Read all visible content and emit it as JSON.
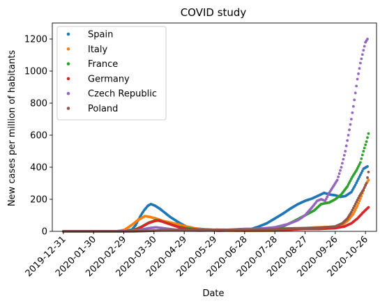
{
  "chart_data": {
    "type": "scatter",
    "title": "COVID study",
    "xlabel": "Date",
    "ylabel": "New cases per million of habitants",
    "x_ticks": [
      "2019-12-31",
      "2020-01-30",
      "2020-02-29",
      "2020-03-30",
      "2020-04-29",
      "2020-05-29",
      "2020-06-28",
      "2020-07-28",
      "2020-08-27",
      "2020-09-26",
      "2020-10-26"
    ],
    "y_ticks": [
      0,
      200,
      400,
      600,
      800,
      1000,
      1200
    ],
    "xlim": [
      "2019-12-20",
      "2020-11-06"
    ],
    "ylim": [
      0,
      1300
    ],
    "legend_position": "upper-left",
    "series": [
      {
        "name": "Spain",
        "color": "#1f77b4",
        "points": [
          [
            "2019-12-31",
            0
          ],
          [
            "2020-02-20",
            0
          ],
          [
            "2020-03-01",
            2
          ],
          [
            "2020-03-08",
            10
          ],
          [
            "2020-03-12",
            40
          ],
          [
            "2020-03-16",
            90
          ],
          [
            "2020-03-20",
            130
          ],
          [
            "2020-03-24",
            160
          ],
          [
            "2020-03-27",
            170
          ],
          [
            "2020-03-31",
            160
          ],
          [
            "2020-04-05",
            140
          ],
          [
            "2020-04-10",
            115
          ],
          [
            "2020-04-15",
            90
          ],
          [
            "2020-04-20",
            70
          ],
          [
            "2020-04-25",
            50
          ],
          [
            "2020-05-01",
            30
          ],
          [
            "2020-05-10",
            18
          ],
          [
            "2020-05-20",
            12
          ],
          [
            "2020-06-01",
            8
          ],
          [
            "2020-06-15",
            6
          ],
          [
            "2020-06-28",
            8
          ],
          [
            "2020-07-05",
            15
          ],
          [
            "2020-07-12",
            30
          ],
          [
            "2020-07-20",
            50
          ],
          [
            "2020-07-28",
            80
          ],
          [
            "2020-08-05",
            110
          ],
          [
            "2020-08-12",
            140
          ],
          [
            "2020-08-20",
            170
          ],
          [
            "2020-08-27",
            190
          ],
          [
            "2020-09-03",
            205
          ],
          [
            "2020-09-10",
            225
          ],
          [
            "2020-09-15",
            240
          ],
          [
            "2020-09-20",
            230
          ],
          [
            "2020-09-26",
            225
          ],
          [
            "2020-10-01",
            215
          ],
          [
            "2020-10-06",
            220
          ],
          [
            "2020-10-12",
            245
          ],
          [
            "2020-10-16",
            290
          ],
          [
            "2020-10-20",
            340
          ],
          [
            "2020-10-24",
            390
          ],
          [
            "2020-10-28",
            405
          ]
        ]
      },
      {
        "name": "Italy",
        "color": "#ff7f0e",
        "points": [
          [
            "2019-12-31",
            0
          ],
          [
            "2020-02-20",
            0
          ],
          [
            "2020-02-25",
            3
          ],
          [
            "2020-03-01",
            10
          ],
          [
            "2020-03-08",
            40
          ],
          [
            "2020-03-14",
            70
          ],
          [
            "2020-03-21",
            95
          ],
          [
            "2020-03-26",
            90
          ],
          [
            "2020-04-01",
            80
          ],
          [
            "2020-04-08",
            65
          ],
          [
            "2020-04-15",
            55
          ],
          [
            "2020-04-22",
            45
          ],
          [
            "2020-05-01",
            30
          ],
          [
            "2020-05-10",
            18
          ],
          [
            "2020-05-20",
            10
          ],
          [
            "2020-06-01",
            6
          ],
          [
            "2020-06-28",
            4
          ],
          [
            "2020-07-28",
            5
          ],
          [
            "2020-08-10",
            8
          ],
          [
            "2020-08-27",
            20
          ],
          [
            "2020-09-10",
            25
          ],
          [
            "2020-09-26",
            28
          ],
          [
            "2020-10-03",
            40
          ],
          [
            "2020-10-09",
            70
          ],
          [
            "2020-10-14",
            110
          ],
          [
            "2020-10-18",
            160
          ],
          [
            "2020-10-22",
            220
          ],
          [
            "2020-10-26",
            290
          ],
          [
            "2020-10-29",
            320
          ]
        ]
      },
      {
        "name": "France",
        "color": "#2ca02c",
        "points": [
          [
            "2019-12-31",
            0
          ],
          [
            "2020-03-01",
            0
          ],
          [
            "2020-03-10",
            8
          ],
          [
            "2020-03-18",
            30
          ],
          [
            "2020-03-25",
            55
          ],
          [
            "2020-04-01",
            70
          ],
          [
            "2020-04-08",
            60
          ],
          [
            "2020-04-15",
            45
          ],
          [
            "2020-04-22",
            30
          ],
          [
            "2020-05-01",
            20
          ],
          [
            "2020-05-15",
            10
          ],
          [
            "2020-06-01",
            5
          ],
          [
            "2020-06-28",
            7
          ],
          [
            "2020-07-15",
            10
          ],
          [
            "2020-07-28",
            20
          ],
          [
            "2020-08-05",
            30
          ],
          [
            "2020-08-15",
            60
          ],
          [
            "2020-08-27",
            100
          ],
          [
            "2020-09-05",
            130
          ],
          [
            "2020-09-12",
            170
          ],
          [
            "2020-09-20",
            180
          ],
          [
            "2020-09-26",
            200
          ],
          [
            "2020-10-02",
            230
          ],
          [
            "2020-10-08",
            280
          ],
          [
            "2020-10-13",
            340
          ],
          [
            "2020-10-17",
            380
          ],
          [
            "2020-10-21",
            430
          ],
          [
            "2020-10-24",
            500
          ],
          [
            "2020-10-27",
            560
          ],
          [
            "2020-10-29",
            610
          ]
        ]
      },
      {
        "name": "Germany",
        "color": "#d62728",
        "points": [
          [
            "2019-12-31",
            0
          ],
          [
            "2020-03-01",
            0
          ],
          [
            "2020-03-10",
            5
          ],
          [
            "2020-03-17",
            25
          ],
          [
            "2020-03-24",
            50
          ],
          [
            "2020-03-31",
            65
          ],
          [
            "2020-04-04",
            68
          ],
          [
            "2020-04-10",
            55
          ],
          [
            "2020-04-17",
            40
          ],
          [
            "2020-04-24",
            25
          ],
          [
            "2020-05-01",
            15
          ],
          [
            "2020-05-15",
            8
          ],
          [
            "2020-06-01",
            5
          ],
          [
            "2020-06-28",
            6
          ],
          [
            "2020-07-28",
            8
          ],
          [
            "2020-08-15",
            12
          ],
          [
            "2020-08-27",
            15
          ],
          [
            "2020-09-10",
            15
          ],
          [
            "2020-09-26",
            20
          ],
          [
            "2020-10-05",
            30
          ],
          [
            "2020-10-12",
            50
          ],
          [
            "2020-10-18",
            80
          ],
          [
            "2020-10-24",
            120
          ],
          [
            "2020-10-29",
            150
          ]
        ]
      },
      {
        "name": "Czech Republic",
        "color": "#9467bd",
        "points": [
          [
            "2019-12-31",
            0
          ],
          [
            "2020-03-05",
            0
          ],
          [
            "2020-03-15",
            8
          ],
          [
            "2020-03-25",
            20
          ],
          [
            "2020-04-01",
            25
          ],
          [
            "2020-04-10",
            18
          ],
          [
            "2020-04-20",
            10
          ],
          [
            "2020-05-01",
            6
          ],
          [
            "2020-05-15",
            5
          ],
          [
            "2020-06-01",
            6
          ],
          [
            "2020-06-28",
            15
          ],
          [
            "2020-07-10",
            15
          ],
          [
            "2020-07-28",
            25
          ],
          [
            "2020-08-10",
            45
          ],
          [
            "2020-08-20",
            70
          ],
          [
            "2020-08-27",
            100
          ],
          [
            "2020-09-03",
            150
          ],
          [
            "2020-09-08",
            190
          ],
          [
            "2020-09-12",
            200
          ],
          [
            "2020-09-16",
            190
          ],
          [
            "2020-09-20",
            240
          ],
          [
            "2020-09-24",
            280
          ],
          [
            "2020-09-28",
            320
          ],
          [
            "2020-10-02",
            400
          ],
          [
            "2020-10-06",
            500
          ],
          [
            "2020-10-09",
            600
          ],
          [
            "2020-10-12",
            700
          ],
          [
            "2020-10-15",
            820
          ],
          [
            "2020-10-18",
            950
          ],
          [
            "2020-10-21",
            1050
          ],
          [
            "2020-10-24",
            1130
          ],
          [
            "2020-10-26",
            1180
          ],
          [
            "2020-10-28",
            1200
          ]
        ]
      },
      {
        "name": "Poland",
        "color": "#8c564b",
        "points": [
          [
            "2019-12-31",
            0
          ],
          [
            "2020-03-10",
            0
          ],
          [
            "2020-03-20",
            2
          ],
          [
            "2020-04-01",
            5
          ],
          [
            "2020-04-20",
            8
          ],
          [
            "2020-05-10",
            9
          ],
          [
            "2020-06-01",
            10
          ],
          [
            "2020-06-28",
            8
          ],
          [
            "2020-07-28",
            12
          ],
          [
            "2020-08-10",
            18
          ],
          [
            "2020-08-27",
            20
          ],
          [
            "2020-09-10",
            22
          ],
          [
            "2020-09-26",
            30
          ],
          [
            "2020-10-03",
            50
          ],
          [
            "2020-10-08",
            80
          ],
          [
            "2020-10-12",
            120
          ],
          [
            "2020-10-16",
            170
          ],
          [
            "2020-10-20",
            220
          ],
          [
            "2020-10-24",
            260
          ],
          [
            "2020-10-27",
            300
          ],
          [
            "2020-10-29",
            370
          ]
        ]
      }
    ]
  }
}
